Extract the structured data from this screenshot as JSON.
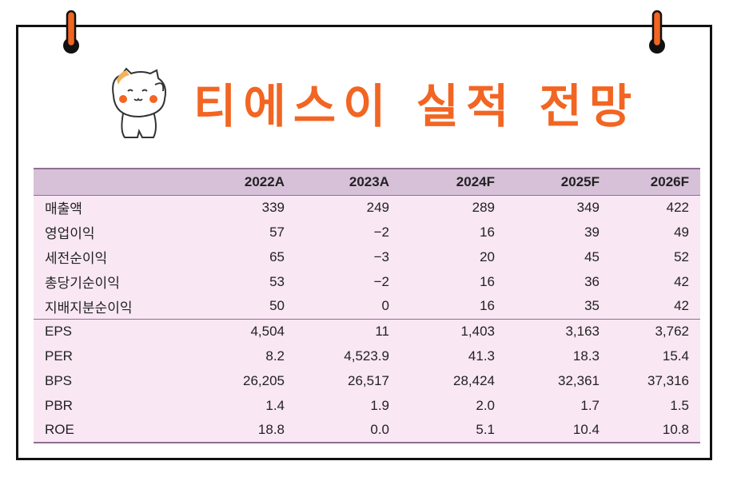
{
  "title": "티에스이 실적 전망",
  "colors": {
    "title": "#f26522",
    "header_bg": "#d7c1d8",
    "row_bg": "#f9e7f4",
    "rule": "#8e6f92"
  },
  "icons": {
    "pins": "pushpin-icon",
    "mascot": "cat-mascot-icon"
  },
  "table": {
    "header": [
      "",
      "2022A",
      "2023A",
      "2024F",
      "2025F",
      "2026F"
    ],
    "section1": [
      {
        "label": "매출액",
        "values": [
          "339",
          "249",
          "289",
          "349",
          "422"
        ]
      },
      {
        "label": "영업이익",
        "values": [
          "57",
          "−2",
          "16",
          "39",
          "49"
        ]
      },
      {
        "label": "세전순이익",
        "values": [
          "65",
          "−3",
          "20",
          "45",
          "52"
        ]
      },
      {
        "label": "총당기순이익",
        "values": [
          "53",
          "−2",
          "16",
          "36",
          "42"
        ]
      },
      {
        "label": "지배지분순이익",
        "values": [
          "50",
          "0",
          "16",
          "35",
          "42"
        ]
      }
    ],
    "section2": [
      {
        "label": "EPS",
        "values": [
          "4,504",
          "11",
          "1,403",
          "3,163",
          "3,762"
        ]
      },
      {
        "label": "PER",
        "values": [
          "8.2",
          "4,523.9",
          "41.3",
          "18.3",
          "15.4"
        ]
      },
      {
        "label": "BPS",
        "values": [
          "26,205",
          "26,517",
          "28,424",
          "32,361",
          "37,316"
        ]
      },
      {
        "label": "PBR",
        "values": [
          "1.4",
          "1.9",
          "2.0",
          "1.7",
          "1.5"
        ]
      },
      {
        "label": "ROE",
        "values": [
          "18.8",
          "0.0",
          "5.1",
          "10.4",
          "10.8"
        ]
      }
    ]
  }
}
